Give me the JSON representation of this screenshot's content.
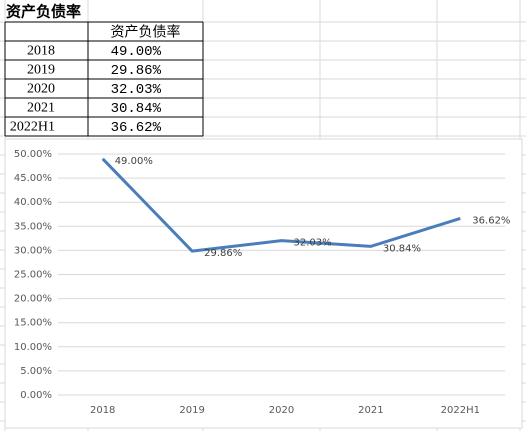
{
  "table": {
    "title": "资产负债率",
    "header": "资产负债率",
    "rows": [
      [
        "2018",
        "49.00%"
      ],
      [
        "2019",
        "29.86%"
      ],
      [
        "2020",
        "32.03%"
      ],
      [
        "2021",
        "30.84%"
      ],
      [
        "2022H1",
        "36.62%"
      ]
    ]
  },
  "chart_data": {
    "type": "line",
    "categories": [
      "2018",
      "2019",
      "2020",
      "2021",
      "2022H1"
    ],
    "values": [
      49.0,
      29.86,
      32.03,
      30.84,
      36.62
    ],
    "value_labels": [
      "49.00%",
      "29.86%",
      "32.03%",
      "30.84%",
      "36.62%"
    ],
    "color": "#4a7ebb",
    "ylim": [
      0,
      50
    ],
    "yticks": [
      {
        "value": 0,
        "label": "0.00%"
      },
      {
        "value": 5,
        "label": "5.00%"
      },
      {
        "value": 10,
        "label": "10.00%"
      },
      {
        "value": 15,
        "label": "15.00%"
      },
      {
        "value": 20,
        "label": "20.00%"
      },
      {
        "value": 25,
        "label": "25.00%"
      },
      {
        "value": 30,
        "label": "30.00%"
      },
      {
        "value": 35,
        "label": "35.00%"
      },
      {
        "value": 40,
        "label": "40.00%"
      },
      {
        "value": 45,
        "label": "45.00%"
      },
      {
        "value": 50,
        "label": "50.00%"
      }
    ],
    "grid": true
  }
}
